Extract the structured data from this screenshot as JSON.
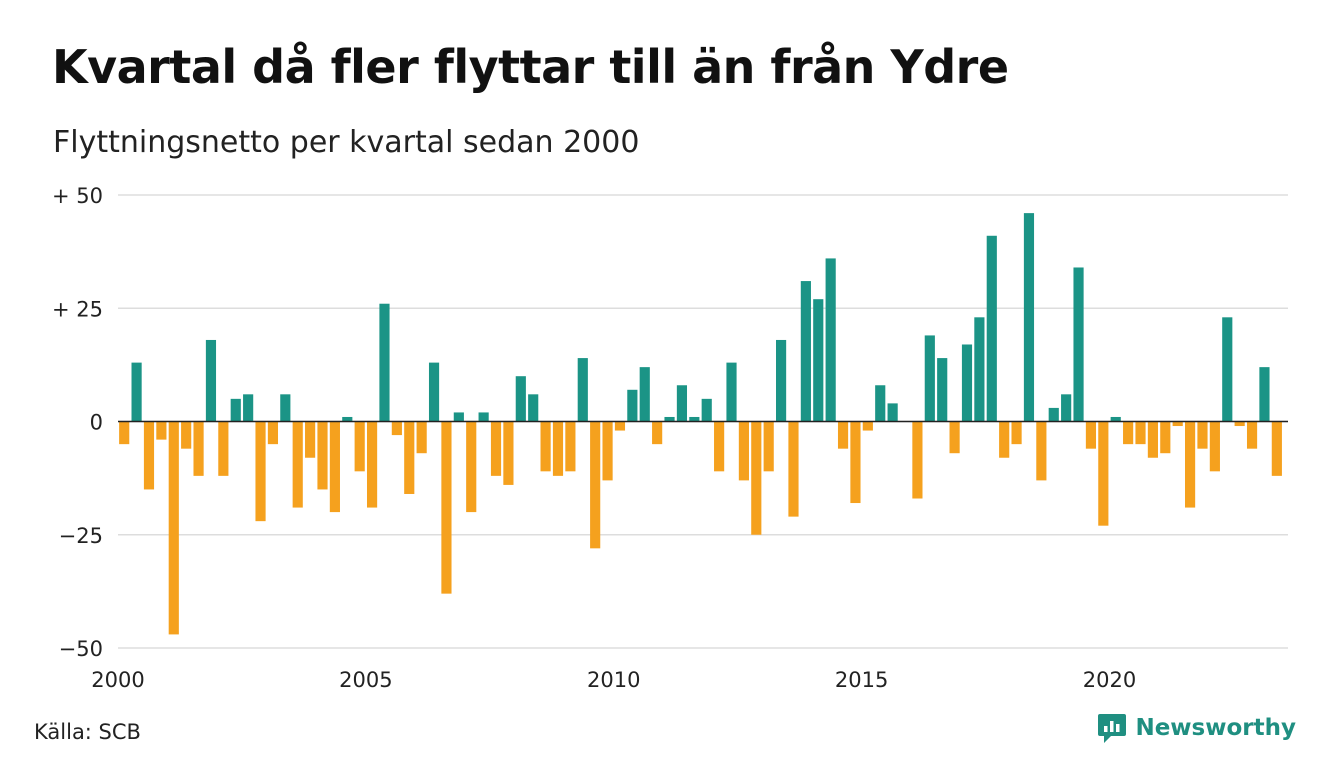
{
  "title": "Kvartal då fler flyttar till än från Ydre",
  "subtitle": "Flyttningsnetto per kvartal sedan 2000",
  "source": "Källa: SCB",
  "brand": "Newsworthy",
  "colors": {
    "positive": "#1b9486",
    "negative": "#f5a11e",
    "grid": "#dddddd",
    "brand": "#1f8f81"
  },
  "chart_data": {
    "type": "bar",
    "title": "Kvartal då fler flyttar till än från Ydre",
    "subtitle": "Flyttningsnetto per kvartal sedan 2000",
    "x_start": 2000,
    "periods_per_year": 4,
    "xlim": [
      2000,
      2023.6
    ],
    "ylim": [
      -50,
      50
    ],
    "y_ticks": [
      50,
      25,
      0,
      -25,
      -50
    ],
    "y_tick_labels": [
      "+ 50",
      "+ 25",
      "0",
      "−25",
      "−50"
    ],
    "x_ticks": [
      2000,
      2005,
      2010,
      2015,
      2020
    ],
    "x_tick_labels": [
      "2000",
      "2005",
      "2010",
      "2015",
      "2020"
    ],
    "grid": true,
    "values": [
      -5,
      13,
      -15,
      -4,
      -47,
      -6,
      -12,
      18,
      -12,
      5,
      6,
      -22,
      -5,
      6,
      -19,
      -8,
      -15,
      -20,
      1,
      -11,
      -19,
      26,
      -3,
      -16,
      -7,
      13,
      -38,
      2,
      -20,
      2,
      -12,
      -14,
      10,
      6,
      -11,
      -12,
      -11,
      14,
      -28,
      -13,
      -2,
      7,
      12,
      -5,
      1,
      8,
      1,
      5,
      -11,
      13,
      -13,
      -25,
      -11,
      18,
      -21,
      31,
      27,
      36,
      -6,
      -18,
      -2,
      8,
      4,
      0,
      -17,
      19,
      14,
      -7,
      17,
      23,
      41,
      -8,
      -5,
      46,
      -13,
      3,
      6,
      34,
      -6,
      -23,
      1,
      -5,
      -5,
      -8,
      -7,
      -1,
      -19,
      -6,
      -11,
      23,
      -1,
      -6,
      12,
      -12
    ]
  }
}
